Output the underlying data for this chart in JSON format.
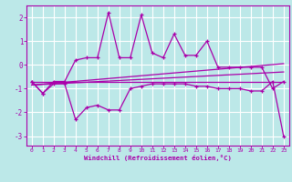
{
  "xlabel": "Windchill (Refroidissement éolien,°C)",
  "xlim": [
    -0.5,
    23.5
  ],
  "ylim": [
    -3.4,
    2.5
  ],
  "xticks": [
    0,
    1,
    2,
    3,
    4,
    5,
    6,
    7,
    8,
    9,
    10,
    11,
    12,
    13,
    14,
    15,
    16,
    17,
    18,
    19,
    20,
    21,
    22,
    23
  ],
  "yticks": [
    -3,
    -2,
    -1,
    0,
    1,
    2
  ],
  "bg_color": "#bce8e8",
  "line_color": "#aa00aa",
  "grid_color": "#ffffff",
  "y_upper": [
    -0.7,
    -1.2,
    -0.7,
    -0.7,
    0.2,
    0.3,
    0.3,
    2.2,
    0.3,
    0.3,
    2.1,
    0.5,
    0.3,
    1.3,
    0.4,
    0.4,
    1.0,
    -0.1,
    -0.1,
    -0.1,
    -0.1,
    -0.1,
    -1.0,
    -0.7
  ],
  "y_lower": [
    -0.7,
    -1.2,
    -0.8,
    -0.8,
    -2.3,
    -1.8,
    -1.7,
    -1.9,
    -1.9,
    -1.0,
    -0.9,
    -0.8,
    -0.8,
    -0.8,
    -0.8,
    -0.9,
    -0.9,
    -1.0,
    -1.0,
    -1.0,
    -1.1,
    -1.1,
    -0.7,
    -3.0
  ],
  "trend1_start": -0.7,
  "trend1_end": -0.7,
  "trend2_start": -0.85,
  "trend2_end": -0.3,
  "trend3_start": -0.85,
  "trend3_end": 0.05
}
